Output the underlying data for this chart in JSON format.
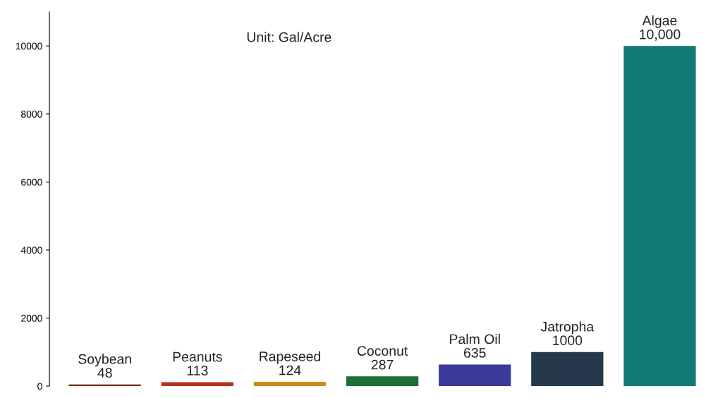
{
  "chart_data": {
    "type": "bar",
    "categories": [
      "Soybean",
      "Peanuts",
      "Rapeseed",
      "Coconut",
      "Palm Oil",
      "Jatropha",
      "Algae"
    ],
    "values": [
      48,
      113,
      124,
      287,
      635,
      1000,
      10000
    ],
    "colors": [
      "#7a3018",
      "#b8321f",
      "#d08a1c",
      "#1a6e38",
      "#3b3a98",
      "#25394a",
      "#127a76"
    ],
    "value_labels": [
      "48",
      "113",
      "124",
      "287",
      "635",
      "1000",
      "10,000"
    ],
    "ylim": [
      0,
      11000
    ],
    "yticks": [
      0,
      2000,
      4000,
      6000,
      8000,
      10000
    ],
    "tick_labels": "y",
    "grid": false,
    "annotations": [
      "Unit: Gal/Acre"
    ]
  }
}
